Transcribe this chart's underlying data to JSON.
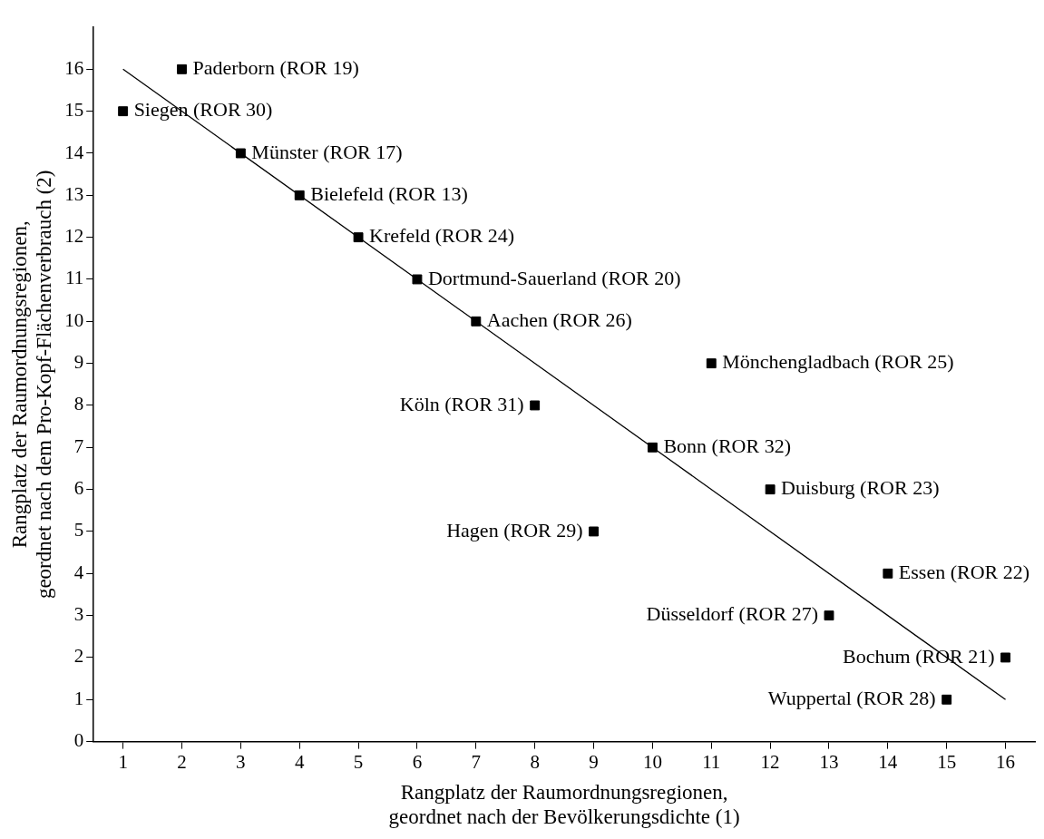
{
  "chart_data": {
    "type": "scatter",
    "xlabel": "Rangplatz der Raumordnungsregionen,\ngeordnet nach der Bevölkerungsdichte (1)",
    "ylabel": "Rangplatz der Raumordnungsregionen,\ngeordnet nach dem Pro-Kopf-Flächenverbrauch (2)",
    "xlim": [
      0.5,
      16.5
    ],
    "xticks": [
      1,
      2,
      3,
      4,
      5,
      6,
      7,
      8,
      9,
      10,
      11,
      12,
      13,
      14,
      15,
      16
    ],
    "ylim": [
      0,
      17
    ],
    "yticks": [
      0,
      1,
      2,
      3,
      4,
      5,
      6,
      7,
      8,
      9,
      10,
      11,
      12,
      13,
      14,
      15,
      16
    ],
    "grid": false,
    "legend": false,
    "marker": "square",
    "series": [
      {
        "color": "#000000",
        "x": [
          1,
          2,
          3,
          4,
          5,
          6,
          7,
          8,
          9,
          10,
          11,
          12,
          13,
          14,
          15,
          16
        ],
        "values": [
          15,
          16,
          14,
          13,
          12,
          11,
          10,
          8,
          5,
          7,
          9,
          6,
          3,
          4,
          1,
          2
        ]
      },
      {
        "type": "line",
        "marker": "none",
        "color": "#000000",
        "x": [
          1,
          16
        ],
        "values": [
          16,
          1
        ]
      }
    ],
    "annotations": [
      {
        "text": "Siegen (ROR 30)",
        "x": 1,
        "y": 15
      },
      {
        "text": "Paderborn (ROR 19)",
        "x": 2,
        "y": 16
      },
      {
        "text": "Münster (ROR 17)",
        "x": 3,
        "y": 14
      },
      {
        "text": "Bielefeld (ROR 13)",
        "x": 4,
        "y": 13
      },
      {
        "text": "Krefeld (ROR 24)",
        "x": 5,
        "y": 12
      },
      {
        "text": "Dortmund-Sauerland (ROR 20)",
        "x": 6,
        "y": 11
      },
      {
        "text": "Aachen (ROR 26)",
        "x": 7,
        "y": 10
      },
      {
        "text": "Köln (ROR 31)",
        "x": 8,
        "y": 8
      },
      {
        "text": "Hagen (ROR 29)",
        "x": 9,
        "y": 5
      },
      {
        "text": "Bonn (ROR 32)",
        "x": 10,
        "y": 7
      },
      {
        "text": "Mönchengladbach (ROR 25)",
        "x": 11,
        "y": 9
      },
      {
        "text": "Duisburg (ROR 23)",
        "x": 12,
        "y": 6
      },
      {
        "text": "Düsseldorf (ROR 27)",
        "x": 13,
        "y": 3
      },
      {
        "text": "Essen (ROR 22)",
        "x": 14,
        "y": 4
      },
      {
        "text": "Wuppertal (ROR 28)",
        "x": 15,
        "y": 1
      },
      {
        "text": "Bochum (ROR 21)",
        "x": 16,
        "y": 2
      }
    ]
  }
}
